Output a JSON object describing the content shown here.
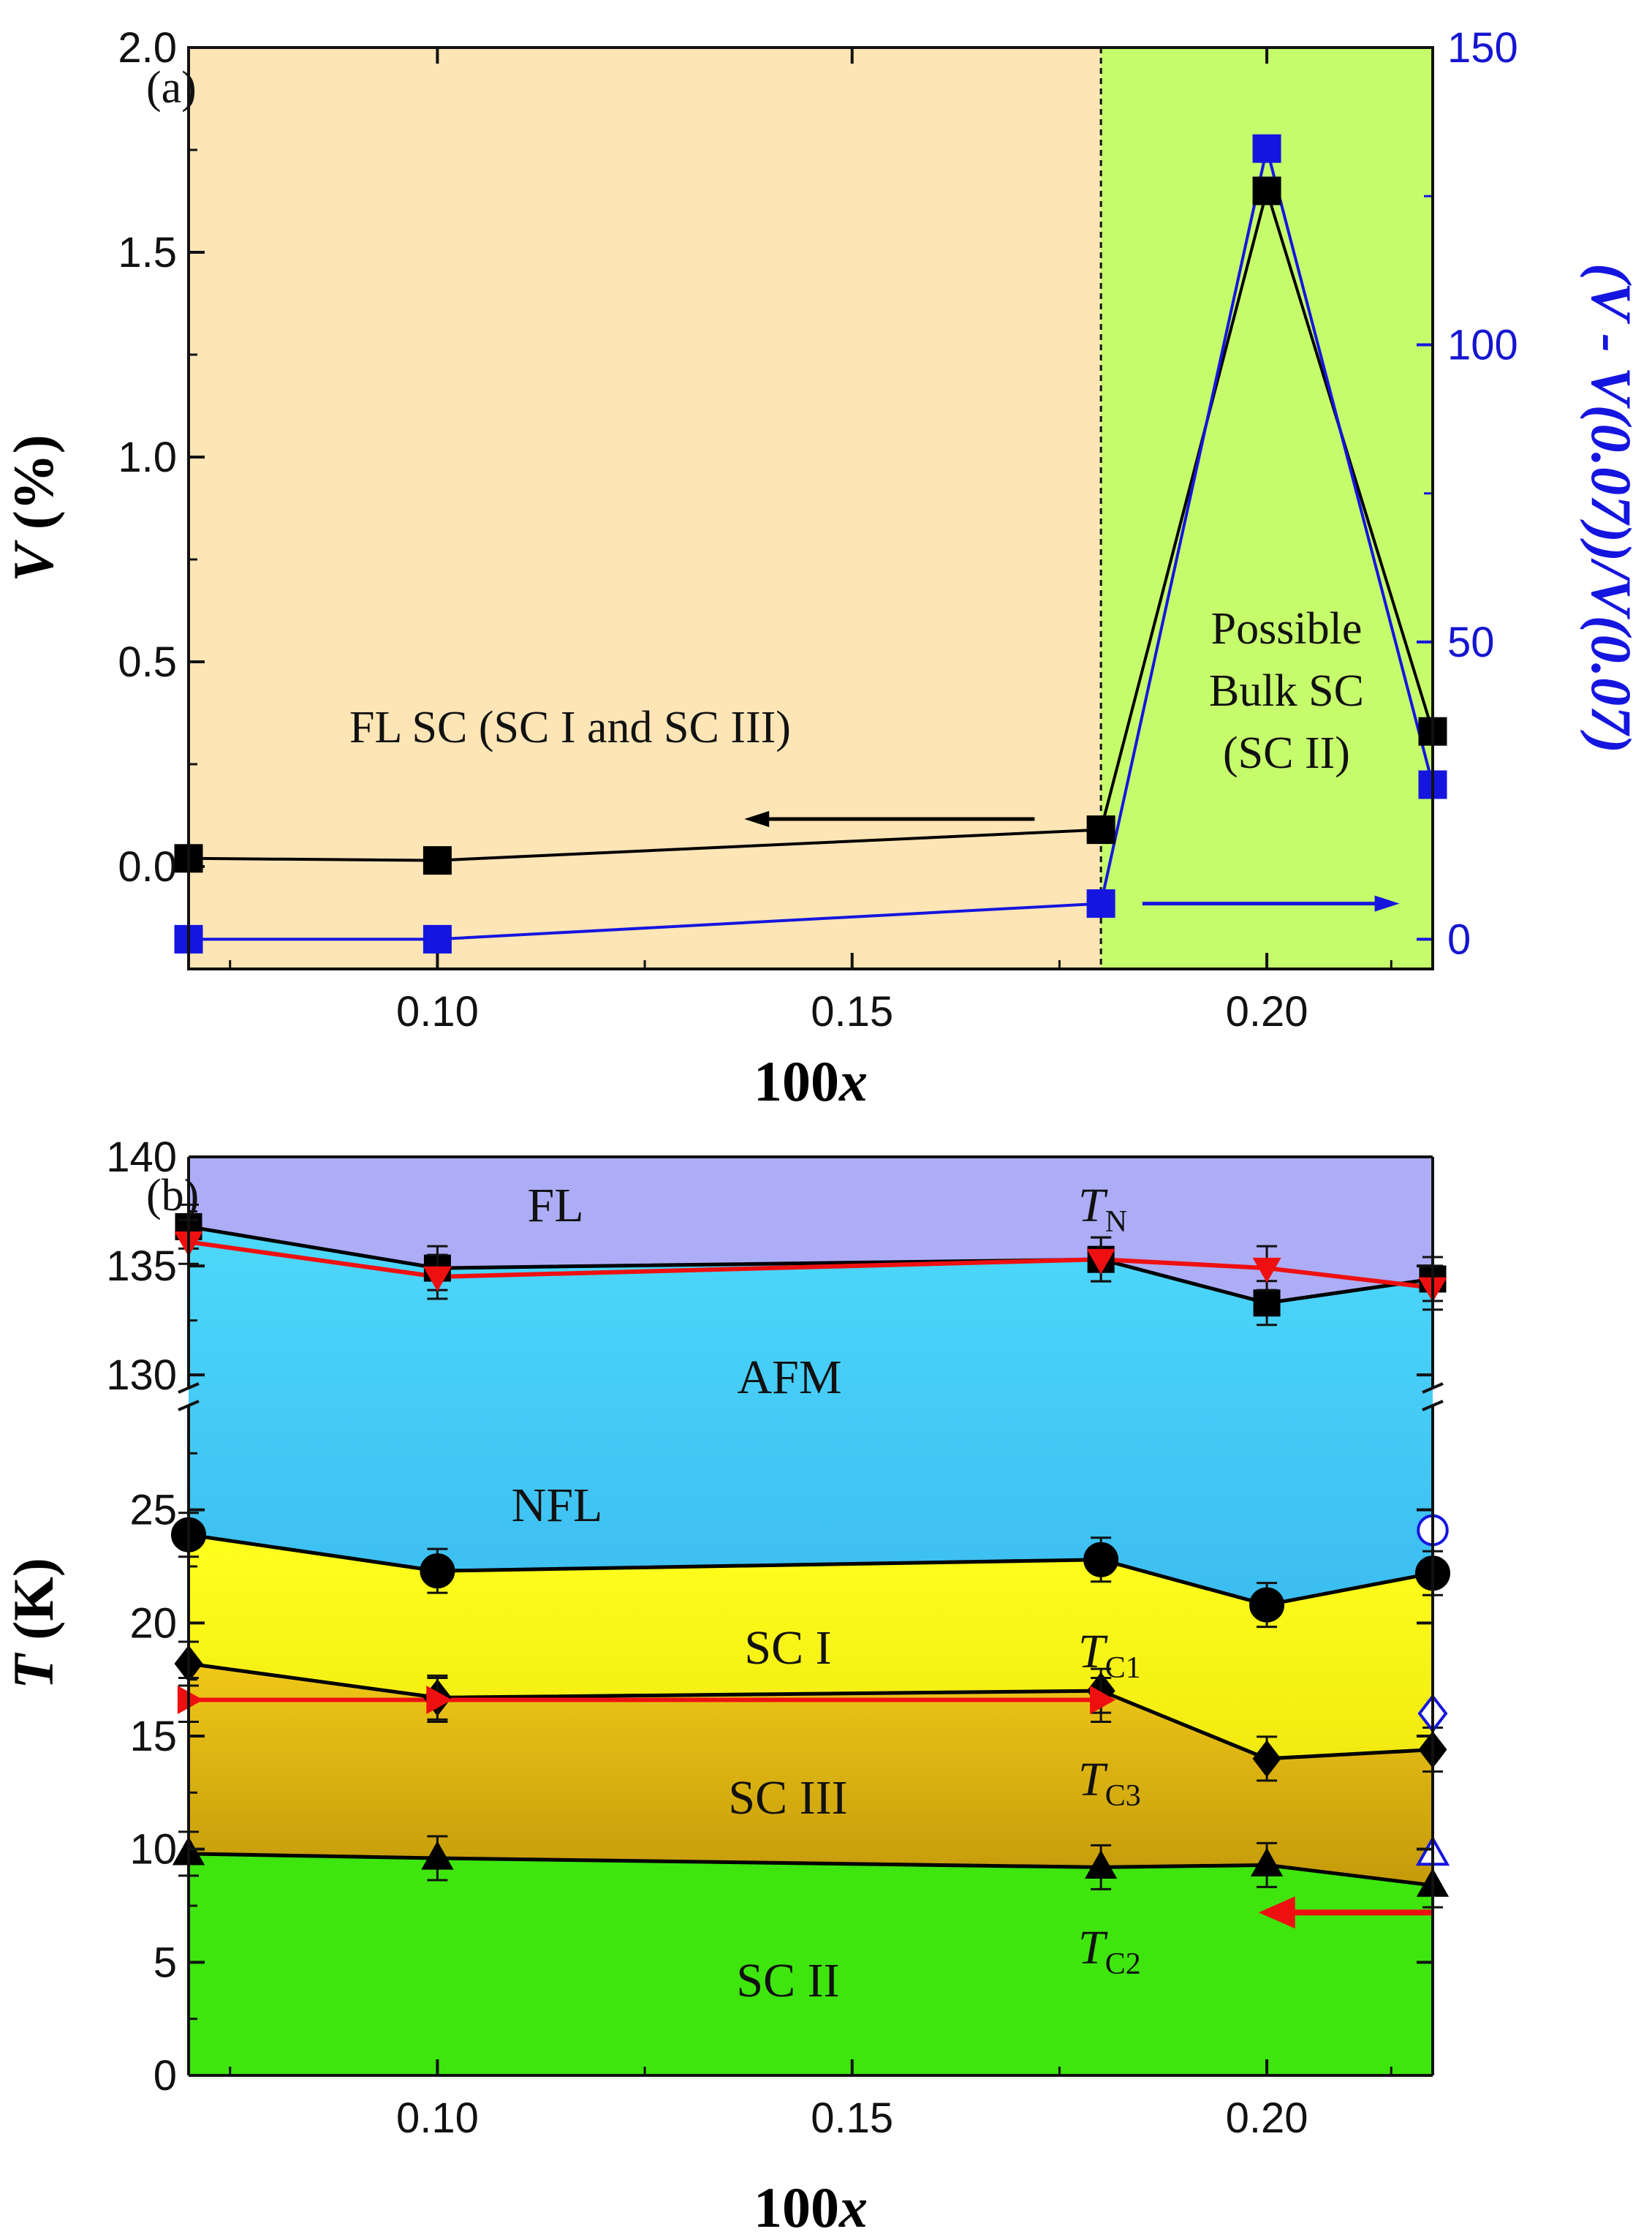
{
  "chart_data": [
    {
      "panel_label": "(a)",
      "type": "line",
      "xlabel": "100x",
      "xlabel_parts": [
        "100",
        "x"
      ],
      "ylabel": "V (%)",
      "ylabel_parts": [
        "V",
        " (%)"
      ],
      "ylabel_right": "(V - V(0.07))/V(0.07)",
      "xlim": [
        0.07,
        0.22
      ],
      "ylim": [
        -0.25,
        2.0
      ],
      "ylim_right": [
        -5,
        150
      ],
      "x_ticks": [
        "0.10",
        "0.15",
        "0.20"
      ],
      "x_tick_values": [
        0.1,
        0.15,
        0.2
      ],
      "y_ticks": [
        "0.0",
        "0.5",
        "1.0",
        "1.5",
        "2.0"
      ],
      "y_tick_values": [
        0.0,
        0.5,
        1.0,
        1.5,
        2.0
      ],
      "y_ticks_right": [
        "0",
        "50",
        "100",
        "150"
      ],
      "y_tick_values_right": [
        0,
        50,
        100,
        150
      ],
      "regions": [
        {
          "name": "FL SC region",
          "x_range": [
            0.07,
            0.18
          ],
          "color": "#fde5b5"
        },
        {
          "name": "bulk SC region",
          "x_range": [
            0.18,
            0.22
          ],
          "color": "#c6fc6c"
        }
      ],
      "divider_x": 0.18,
      "series": [
        {
          "name": "V",
          "axis": "left",
          "color": "#000000",
          "marker": "square",
          "x": [
            0.07,
            0.1,
            0.18,
            0.2,
            0.22
          ],
          "y": [
            0.02,
            0.015,
            0.09,
            1.65,
            0.33
          ]
        },
        {
          "name": "(V - V(0.07))/V(0.07)",
          "axis": "right",
          "color": "#1515e0",
          "marker": "square",
          "x": [
            0.07,
            0.1,
            0.18,
            0.2,
            0.22
          ],
          "y": [
            0,
            0,
            6,
            133,
            26
          ]
        }
      ],
      "annotations": {
        "fl_sc": "FL SC (SC I and SC III)",
        "bulk_line1": "Possible",
        "bulk_line2": "Bulk SC",
        "bulk_line3": "(SC II)"
      },
      "arrows": [
        {
          "direction": "left",
          "color": "#000000",
          "y": 0.09,
          "x_from": 0.172,
          "x_to": 0.137
        },
        {
          "direction": "right",
          "axis": "right",
          "color": "#1515e0",
          "y": 6,
          "x_from": 0.185,
          "x_to": 0.216
        }
      ]
    },
    {
      "panel_label": "(b)",
      "type": "line",
      "xlabel": "100x",
      "xlabel_parts": [
        "100",
        "x"
      ],
      "ylabel": "T (K)",
      "ylabel_parts": [
        "T",
        " (K)"
      ],
      "xlim": [
        0.07,
        0.22
      ],
      "broken_y_axis": true,
      "ylim_upper": [
        129,
        140
      ],
      "ylim_lower": [
        0,
        30
      ],
      "x_ticks": [
        "0.10",
        "0.15",
        "0.20"
      ],
      "x_tick_values": [
        0.1,
        0.15,
        0.2
      ],
      "y_ticks_upper": [
        "130",
        "135",
        "140"
      ],
      "y_tick_values_upper": [
        130,
        135,
        140
      ],
      "y_ticks_lower": [
        "0",
        "5",
        "10",
        "15",
        "20",
        "25"
      ],
      "y_tick_values_lower": [
        0,
        5,
        10,
        15,
        20,
        25
      ],
      "phase_labels": {
        "fl": "FL",
        "afm": "AFM",
        "nfl": "NFL",
        "sc1": "SC I",
        "sc3": "SC III",
        "sc2": "SC II"
      },
      "curve_labels": {
        "tn_main": "T",
        "tn_sub": "N",
        "tc1_main": "T",
        "tc1_sub": "C1",
        "tc3_main": "T",
        "tc3_sub": "C3",
        "tc2_main": "T",
        "tc2_sub": "C2"
      },
      "colors": {
        "fl": "#adadf7",
        "afm_top": "#4dd8fb",
        "afm_bottom": "#3cbdf0",
        "sc1_top": "#ffff1e",
        "sc1_bottom": "#f2ea10",
        "sc3_top": "#f0c818",
        "sc3_bottom": "#c49a0a",
        "sc2": "#3ee60e",
        "red": "#ee1010"
      },
      "series": [
        {
          "name": "T_N",
          "color": "#000000",
          "marker": "square",
          "x": [
            0.07,
            0.1,
            0.18,
            0.2,
            0.22
          ],
          "y": [
            136.8,
            134.9,
            135.3,
            133.3,
            134.4
          ]
        },
        {
          "name": "T_N (red)",
          "color": "#ee1010",
          "marker": "triangle-down",
          "x": [
            0.07,
            0.1,
            0.18,
            0.2,
            0.22
          ],
          "y": [
            136.1,
            134.5,
            135.3,
            134.9,
            134.0
          ]
        },
        {
          "name": "T_C1",
          "color": "#000000",
          "marker": "circle",
          "x": [
            0.07,
            0.1,
            0.18,
            0.2,
            0.22
          ],
          "y": [
            23.9,
            22.3,
            22.8,
            20.8,
            22.2
          ]
        },
        {
          "name": "T_C3",
          "color": "#000000",
          "marker": "diamond",
          "x": [
            0.07,
            0.1,
            0.18,
            0.2,
            0.22
          ],
          "y": [
            18.2,
            16.7,
            17.0,
            14.0,
            14.4
          ]
        },
        {
          "name": "T_C3 (red)",
          "color": "#ee1010",
          "marker": "triangle-right",
          "x": [
            0.07,
            0.1,
            0.18
          ],
          "y": [
            16.6,
            16.6,
            16.6
          ]
        },
        {
          "name": "T_C2",
          "color": "#000000",
          "marker": "triangle-up",
          "x": [
            0.07,
            0.1,
            0.18,
            0.2,
            0.22
          ],
          "y": [
            9.8,
            9.6,
            9.2,
            9.3,
            8.4
          ]
        }
      ],
      "open_markers": [
        {
          "shape": "circle",
          "x": 0.22,
          "y": 24.1
        },
        {
          "shape": "diamond",
          "x": 0.22,
          "y": 16.0
        },
        {
          "shape": "triangle-up",
          "x": 0.22,
          "y": 9.8
        }
      ],
      "red_arrow": {
        "x_from": 0.22,
        "x_to": 0.199,
        "y": 7.2
      }
    }
  ]
}
